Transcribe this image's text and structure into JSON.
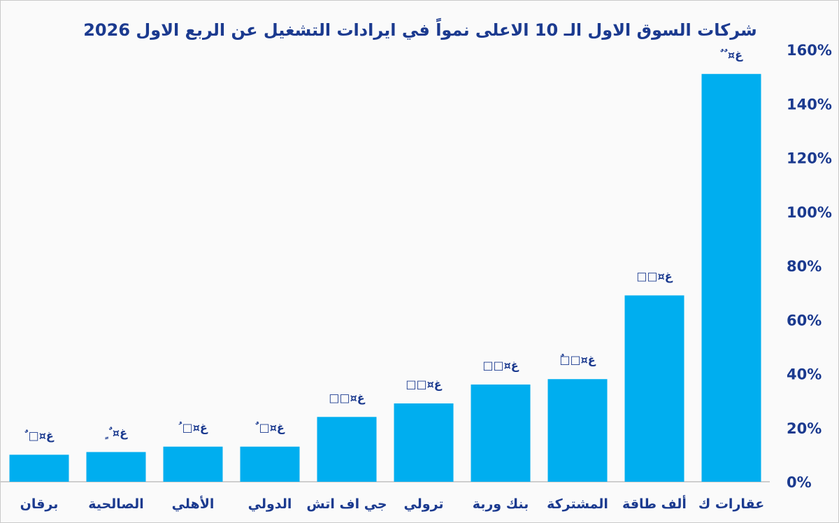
{
  "chart_data": {
    "type": "bar",
    "title": "شركات السوق الاول الـ 10 الاعلى نمواً في ايرادات التشغيل عن الربع الاول 2026",
    "categories": [
      "برقان",
      "الصالحية",
      "الأهلي",
      "الدولي",
      "جي اف اتش",
      "ترولي",
      "بنك وربة",
      "المشتركة",
      "ألف طاقة",
      "عقارات ك"
    ],
    "values": [
      10,
      11,
      13,
      13,
      24,
      29,
      36,
      38,
      69,
      151
    ],
    "data_labels": [
      "غ¤□ ٌ",
      "غ¤ ٌ ٍ",
      "غ¤□ ُ",
      "غ¤□ ٌ",
      "غ¤□□",
      "غ¤□□",
      "غ¤□□",
      "غ¤□□ٌ",
      "غ¤□□",
      "غ¤ ٌ ٌ"
    ],
    "ylim": [
      0,
      160
    ],
    "yticks": [
      0,
      20,
      40,
      60,
      80,
      100,
      120,
      140,
      160
    ],
    "ytick_labels": [
      "0%",
      "20%",
      "40%",
      "60%",
      "80%",
      "100%",
      "120%",
      "140%",
      "160%"
    ],
    "y_axis_side": "right",
    "grid": false,
    "legend": "none",
    "colors": {
      "bar": "#00AEEF",
      "text": "#1B3A8F",
      "baseline": "#BFBFBF"
    }
  }
}
